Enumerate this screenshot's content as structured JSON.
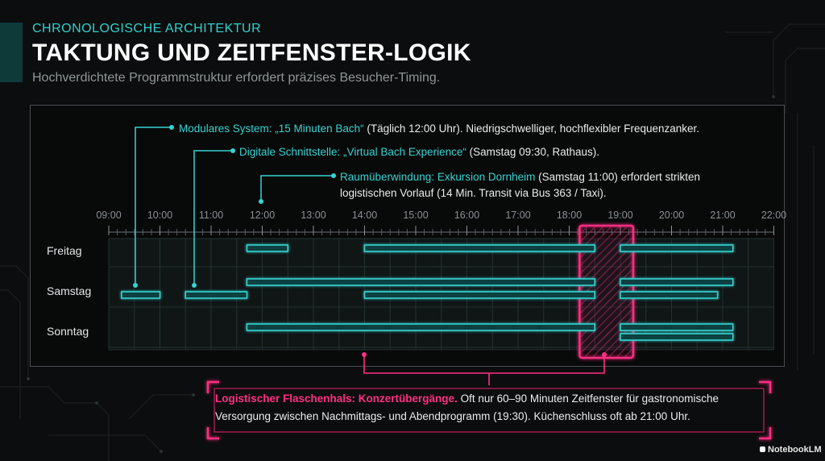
{
  "header": {
    "kicker": "CHRONOLOGISCHE ARCHITEKTUR",
    "title": "TAKTUNG UND ZEITFENSTER-LOGIK",
    "subtitle": "Hochverdichtete Programmstruktur erfordert präzises Besucher-Timing."
  },
  "annotations": [
    {
      "highlight": "Modulares System: „15 Minuten Bach“",
      "text": " (Täglich 12:00 Uhr). Niedrigschwelliger, hochflexibler Frequenzanker."
    },
    {
      "highlight": "Digitale Schnittstelle: „Virtual Bach Experience“",
      "text": " (Samstag 09:30, Rathaus)."
    },
    {
      "highlight": "Raumüberwindung: Exkursion Dornheim",
      "text": " (Samstag 11:00) erfordert strikten",
      "line2": "logistischen Vorlauf (14 Min. Transit via Bus 363 / Taxi)."
    }
  ],
  "timeline": {
    "hours": [
      "09:00",
      "10:00",
      "11:00",
      "12:00",
      "13:00",
      "14:00",
      "15:00",
      "16:00",
      "17:00",
      "18:00",
      "19:00",
      "20:00",
      "21:00",
      "22:00"
    ],
    "days": [
      "Freitag",
      "Samstag",
      "Sonntag"
    ],
    "bottleneck_hours": [
      18.25,
      19.0
    ],
    "bars": [
      {
        "day": 0,
        "start": 11.7,
        "end": 12.5
      },
      {
        "day": 0,
        "start": 14.0,
        "end": 18.5
      },
      {
        "day": 0,
        "start": 19.0,
        "end": 21.2
      },
      {
        "day": 1,
        "start": 11.7,
        "end": 18.5
      },
      {
        "day": 1,
        "start": 19.0,
        "end": 21.2
      },
      {
        "day": 1,
        "start": 9.25,
        "end": 10.0
      },
      {
        "day": 1,
        "start": 10.5,
        "end": 11.7
      },
      {
        "day": 1,
        "start": 14.0,
        "end": 18.5
      },
      {
        "day": 1,
        "start": 19.0,
        "end": 20.9
      },
      {
        "day": 2,
        "start": 11.7,
        "end": 18.5
      },
      {
        "day": 2,
        "start": 19.0,
        "end": 21.2
      },
      {
        "day": 2,
        "start": 19.0,
        "end": 21.2
      }
    ]
  },
  "callout": {
    "highlight": "Logistischer Flaschenhals: Konzertübergänge.",
    "text": " Oft nur 60–90 Minuten Zeitfenster für gastronomische Versorgung zwischen Nachmittags- und Abendprogramm (19:30). Küchenschluss oft ab 21:00 Uhr."
  },
  "logo": "NotebookLM",
  "colors": {
    "cyan": "#35d3d1",
    "magenta": "#ff2f82",
    "bg": "#0c0d0e"
  }
}
